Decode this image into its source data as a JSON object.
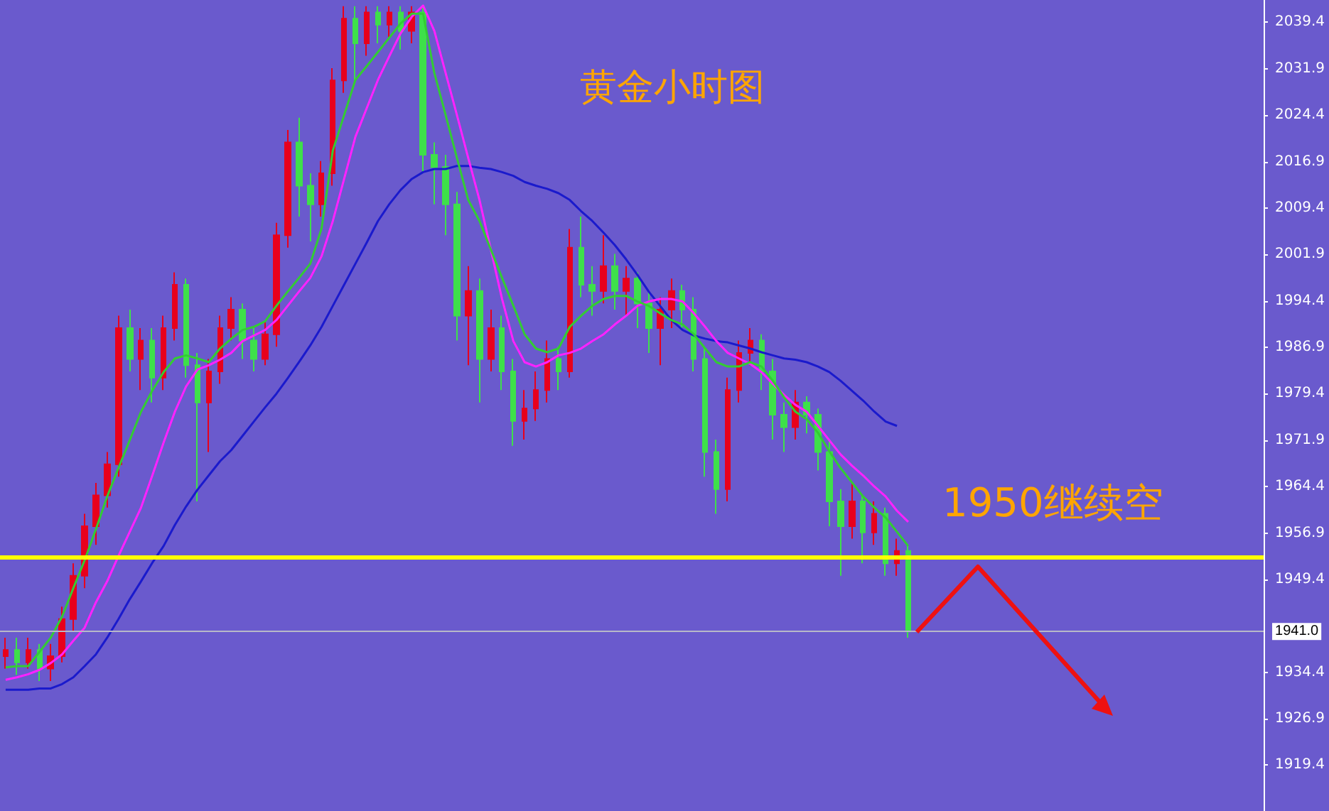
{
  "chart_data": {
    "type": "candlestick",
    "title": "黄金小时图",
    "annotations": [
      "1950继续空"
    ],
    "categories": [
      null,
      null,
      null,
      null,
      null,
      null,
      null,
      null,
      null,
      null,
      null,
      null,
      null,
      null,
      null,
      null,
      null,
      null,
      null,
      null,
      null,
      null,
      null,
      null,
      null,
      null,
      null,
      null,
      null,
      null,
      null,
      null,
      null,
      null,
      null,
      null,
      null,
      null,
      null,
      null,
      null,
      null,
      null,
      null,
      null,
      null,
      null,
      null,
      null,
      null,
      null,
      null,
      null,
      null,
      null,
      null,
      null,
      null,
      null,
      null,
      null,
      null,
      null,
      null,
      null,
      null,
      null,
      null,
      null,
      null,
      null,
      null,
      null,
      null,
      null,
      null,
      null,
      null,
      null,
      null,
      null,
      null,
      null,
      null,
      null,
      null,
      null,
      null,
      null,
      null,
      null,
      null,
      null,
      null,
      null,
      null,
      null,
      null,
      null,
      null,
      null,
      null,
      null,
      null,
      null,
      null,
      null,
      null,
      null,
      null,
      null,
      null
    ],
    "ohlc": [
      [
        1937,
        1940,
        1935,
        1938
      ],
      [
        1938,
        1940,
        1934,
        1936
      ],
      [
        1936,
        1940,
        1935,
        1938
      ],
      [
        1938,
        1939,
        1933,
        1935
      ],
      [
        1935,
        1939,
        1933,
        1937
      ],
      [
        1937,
        1945,
        1936,
        1943
      ],
      [
        1943,
        1952,
        1941,
        1950
      ],
      [
        1950,
        1960,
        1948,
        1958
      ],
      [
        1958,
        1965,
        1955,
        1963
      ],
      [
        1963,
        1970,
        1961,
        1968
      ],
      [
        1968,
        1992,
        1966,
        1990
      ],
      [
        1990,
        1993,
        1983,
        1985
      ],
      [
        1985,
        1990,
        1980,
        1988
      ],
      [
        1988,
        1990,
        1978,
        1982
      ],
      [
        1982,
        1992,
        1980,
        1990
      ],
      [
        1990,
        1999,
        1988,
        1997
      ],
      [
        1997,
        1998,
        1982,
        1984
      ],
      [
        1984,
        1986,
        1962,
        1978
      ],
      [
        1978,
        1985,
        1970,
        1983
      ],
      [
        1983,
        1992,
        1981,
        1990
      ],
      [
        1990,
        1995,
        1988,
        1993
      ],
      [
        1993,
        1994,
        1985,
        1988
      ],
      [
        1988,
        1990,
        1983,
        1985
      ],
      [
        1985,
        1991,
        1984,
        1989
      ],
      [
        1989,
        2007,
        1987,
        2005
      ],
      [
        2005,
        2022,
        2003,
        2020
      ],
      [
        2020,
        2024,
        2008,
        2013
      ],
      [
        2013,
        2015,
        2004,
        2010
      ],
      [
        2010,
        2017,
        2008,
        2015
      ],
      [
        2015,
        2032,
        2013,
        2030
      ],
      [
        2030,
        2042,
        2028,
        2040
      ],
      [
        2040,
        2042,
        2030,
        2036
      ],
      [
        2036,
        2042,
        2034,
        2041
      ],
      [
        2041,
        2042,
        2036,
        2039
      ],
      [
        2039,
        2042,
        2037,
        2041
      ],
      [
        2041,
        2042,
        2035,
        2038
      ],
      [
        2038,
        2042,
        2036,
        2041
      ],
      [
        2041,
        2042,
        2015,
        2018
      ],
      [
        2018,
        2020,
        2010,
        2016
      ],
      [
        2016,
        2018,
        2005,
        2010
      ],
      [
        2010,
        2012,
        1988,
        1992
      ],
      [
        1992,
        2000,
        1984,
        1996
      ],
      [
        1996,
        1998,
        1978,
        1985
      ],
      [
        1985,
        1993,
        1983,
        1990
      ],
      [
        1990,
        1992,
        1980,
        1983
      ],
      [
        1983,
        1985,
        1971,
        1975
      ],
      [
        1975,
        1980,
        1972,
        1977
      ],
      [
        1977,
        1983,
        1975,
        1980
      ],
      [
        1980,
        1988,
        1978,
        1985
      ],
      [
        1985,
        1987,
        1980,
        1983
      ],
      [
        1983,
        2006,
        1982,
        2003
      ],
      [
        2003,
        2008,
        1995,
        1997
      ],
      [
        1997,
        2000,
        1992,
        1996
      ],
      [
        1996,
        2005,
        1994,
        2000
      ],
      [
        2000,
        2002,
        1993,
        1996
      ],
      [
        1996,
        2000,
        1992,
        1998
      ],
      [
        1998,
        1999,
        1990,
        1994
      ],
      [
        1994,
        1996,
        1986,
        1990
      ],
      [
        1990,
        1995,
        1984,
        1993
      ],
      [
        1993,
        1998,
        1990,
        1996
      ],
      [
        1996,
        1997,
        1990,
        1993
      ],
      [
        1993,
        1995,
        1983,
        1985
      ],
      [
        1985,
        1987,
        1966,
        1970
      ],
      [
        1970,
        1972,
        1960,
        1964
      ],
      [
        1964,
        1982,
        1962,
        1980
      ],
      [
        1980,
        1988,
        1978,
        1986
      ],
      [
        1986,
        1990,
        1984,
        1988
      ],
      [
        1988,
        1989,
        1980,
        1983
      ],
      [
        1983,
        1985,
        1972,
        1976
      ],
      [
        1976,
        1978,
        1970,
        1974
      ],
      [
        1974,
        1980,
        1972,
        1978
      ],
      [
        1978,
        1979,
        1973,
        1976
      ],
      [
        1976,
        1977,
        1967,
        1970
      ],
      [
        1970,
        1972,
        1958,
        1962
      ],
      [
        1962,
        1964,
        1950,
        1958
      ],
      [
        1958,
        1965,
        1956,
        1962
      ],
      [
        1962,
        1963,
        1952,
        1957
      ],
      [
        1957,
        1962,
        1955,
        1960
      ],
      [
        1960,
        1961,
        1950,
        1952
      ],
      [
        1952,
        1956,
        1950,
        1954
      ],
      [
        1954,
        1955,
        1940,
        1941
      ],
      null,
      null,
      null,
      null,
      null,
      null,
      null,
      null,
      null,
      null,
      null,
      null,
      null,
      null,
      null,
      null,
      null,
      null,
      null,
      null,
      null,
      null,
      null,
      null,
      null,
      null,
      null,
      null,
      null,
      null,
      null
    ],
    "colors": [
      "#e8001c",
      "#3ee04a",
      "#e8001c",
      "#3ee04a",
      "#e8001c",
      "#e8001c",
      "#e8001c",
      "#e8001c",
      "#e8001c",
      "#e8001c",
      "#e8001c",
      "#3ee04a",
      "#e8001c",
      "#3ee04a",
      "#e8001c",
      "#e8001c",
      "#3ee04a",
      "#3ee04a",
      "#e8001c",
      "#e8001c",
      "#e8001c",
      "#3ee04a",
      "#3ee04a",
      "#e8001c",
      "#e8001c",
      "#e8001c",
      "#3ee04a",
      "#3ee04a",
      "#e8001c",
      "#e8001c",
      "#e8001c",
      "#3ee04a",
      "#e8001c",
      "#3ee04a",
      "#e8001c",
      "#3ee04a",
      "#e8001c",
      "#3ee04a",
      "#3ee04a",
      "#3ee04a",
      "#3ee04a",
      "#e8001c",
      "#3ee04a",
      "#e8001c",
      "#3ee04a",
      "#3ee04a",
      "#e8001c",
      "#e8001c",
      "#e8001c",
      "#3ee04a",
      "#e8001c",
      "#3ee04a",
      "#3ee04a",
      "#e8001c",
      "#3ee04a",
      "#e8001c",
      "#3ee04a",
      "#3ee04a",
      "#e8001c",
      "#e8001c",
      "#3ee04a",
      "#3ee04a",
      "#3ee04a",
      "#3ee04a",
      "#e8001c",
      "#e8001c",
      "#e8001c",
      "#3ee04a",
      "#3ee04a",
      "#3ee04a",
      "#e8001c",
      "#3ee04a",
      "#3ee04a",
      "#3ee04a",
      "#3ee04a",
      "#e8001c",
      "#3ee04a",
      "#e8001c",
      "#3ee04a",
      "#e8001c",
      "#3ee04a",
      null,
      null,
      null,
      null,
      null,
      null,
      null,
      null,
      null,
      null,
      null,
      null,
      null,
      null,
      null,
      null,
      null,
      null,
      null,
      null,
      null,
      null,
      null,
      null,
      null,
      null,
      null,
      null,
      null,
      null,
      null
    ],
    "series": [
      {
        "type": "line",
        "color": "#1a1acc",
        "values": [
          1931.6,
          1931.6,
          1931.6,
          1931.8,
          1931.8,
          1932.5,
          1933.6,
          1935.4,
          1937.3,
          1940.0,
          1943.0,
          1946.2,
          1949.1,
          1952.1,
          1954.8,
          1958.2,
          1961.2,
          1963.9,
          1966.2,
          1968.5,
          1970.3,
          1972.6,
          1974.9,
          1977.2,
          1979.4,
          1981.9,
          1984.5,
          1987.2,
          1990.2,
          1993.6,
          1997.0,
          2000.4,
          2003.8,
          2007.3,
          2010.0,
          2012.3,
          2014.1,
          2015.2,
          2015.7,
          2015.7,
          2016.2,
          2016.2,
          2015.9,
          2015.7,
          2015.2,
          2014.6,
          2013.6,
          2013.0,
          2012.5,
          2011.8,
          2010.7,
          2008.9,
          2007.3,
          2005.4,
          2003.4,
          2001.1,
          1998.6,
          1995.9,
          1993.6,
          1991.3,
          1989.7,
          1988.8,
          1988.3,
          1987.9,
          1987.7,
          1987.2,
          1986.7,
          1986.1,
          1985.6,
          1985.1,
          1984.9,
          1984.5,
          1983.8,
          1982.9,
          1981.5,
          1979.9,
          1978.3,
          1976.5,
          1974.9,
          1974.2,
          null,
          null,
          null,
          null,
          null,
          null,
          null,
          null,
          null,
          null,
          null,
          null,
          null,
          null,
          null,
          null,
          null,
          null,
          null,
          null,
          null,
          null,
          null,
          null,
          null,
          null,
          null,
          null,
          null,
          null,
          null,
          null
        ]
      },
      {
        "type": "line",
        "color": "#ff22ff",
        "values": [
          1933.2,
          1933.6,
          1934.1,
          1934.8,
          1935.9,
          1937.3,
          1939.5,
          1941.6,
          1945.7,
          1949.1,
          1953.2,
          1957.1,
          1961.0,
          1966.2,
          1971.5,
          1976.5,
          1980.6,
          1983.3,
          1984.0,
          1984.9,
          1986.0,
          1987.9,
          1988.8,
          1989.7,
          1991.3,
          1993.6,
          1995.9,
          1998.1,
          2001.6,
          2007.3,
          2014.1,
          2020.9,
          2025.5,
          2030.1,
          2033.9,
          2037.6,
          2040.3,
          2042.1,
          2038.0,
          2031.2,
          2024.4,
          2017.5,
          2010.7,
          2002.7,
          1994.7,
          1987.9,
          1984.5,
          1983.8,
          1984.5,
          1985.6,
          1986.0,
          1986.7,
          1987.9,
          1989.0,
          1990.6,
          1992.0,
          1993.6,
          1994.3,
          1994.7,
          1994.7,
          1994.3,
          1992.4,
          1990.2,
          1987.9,
          1986.0,
          1985.1,
          1984.2,
          1982.9,
          1981.0,
          1979.2,
          1977.6,
          1976.5,
          1974.2,
          1971.9,
          1969.6,
          1967.8,
          1966.2,
          1964.4,
          1962.8,
          1960.5,
          1958.7,
          null,
          null,
          null,
          null,
          null,
          null,
          null,
          null,
          null,
          null,
          null,
          null,
          null,
          null,
          null,
          null,
          null,
          null,
          null,
          null,
          null,
          null,
          null,
          null,
          null,
          null,
          null,
          null,
          null,
          null,
          null
        ]
      },
      {
        "type": "line",
        "color": "#33cc33",
        "values": [
          1935.2,
          1935.4,
          1935.4,
          1937.7,
          1940.0,
          1943.4,
          1948.0,
          1952.5,
          1957.5,
          1962.8,
          1967.4,
          1971.9,
          1976.5,
          1979.9,
          1982.9,
          1985.1,
          1985.6,
          1985.1,
          1984.5,
          1986.7,
          1988.3,
          1989.7,
          1990.2,
          1991.1,
          1993.6,
          1995.9,
          1998.1,
          2000.4,
          2006.1,
          2018.7,
          2024.4,
          2030.1,
          2032.3,
          2034.6,
          2036.9,
          2039.2,
          2040.8,
          2040.8,
          2031.2,
          2024.4,
          2017.5,
          2010.7,
          2007.3,
          2002.7,
          1998.1,
          1993.6,
          1989.0,
          1986.7,
          1986.1,
          1986.7,
          1990.2,
          1992.0,
          1993.6,
          1994.7,
          1995.2,
          1995.2,
          1994.3,
          1993.6,
          1992.4,
          1991.3,
          1990.6,
          1989.0,
          1986.7,
          1984.5,
          1983.8,
          1983.8,
          1984.5,
          1983.8,
          1981.5,
          1978.8,
          1976.5,
          1975.3,
          1973.1,
          1970.1,
          1967.4,
          1965.1,
          1962.8,
          1961.0,
          1959.4,
          1957.1,
          1954.8,
          null,
          null,
          null,
          null,
          null,
          null,
          null,
          null,
          null,
          null,
          null,
          null,
          null,
          null,
          null,
          null,
          null,
          null,
          null,
          null,
          null,
          null,
          null,
          null,
          null,
          null,
          null,
          null,
          null,
          null,
          null
        ]
      }
    ],
    "ylim": [
      1912,
      2043
    ],
    "yticks": [
      1919.4,
      1926.9,
      1934.4,
      1949.4,
      1956.9,
      1964.4,
      1971.9,
      1979.4,
      1986.9,
      1994.4,
      2001.9,
      2009.4,
      2016.9,
      2024.4,
      2031.9,
      2039.4
    ],
    "ref_lines": [
      {
        "axis": "y",
        "value": 1953,
        "color": "#ffff00"
      },
      {
        "axis": "y",
        "value": 1941,
        "label": "1941.0",
        "color": "#b8b8c8"
      }
    ],
    "grid": false,
    "tick_labels": "y"
  }
}
